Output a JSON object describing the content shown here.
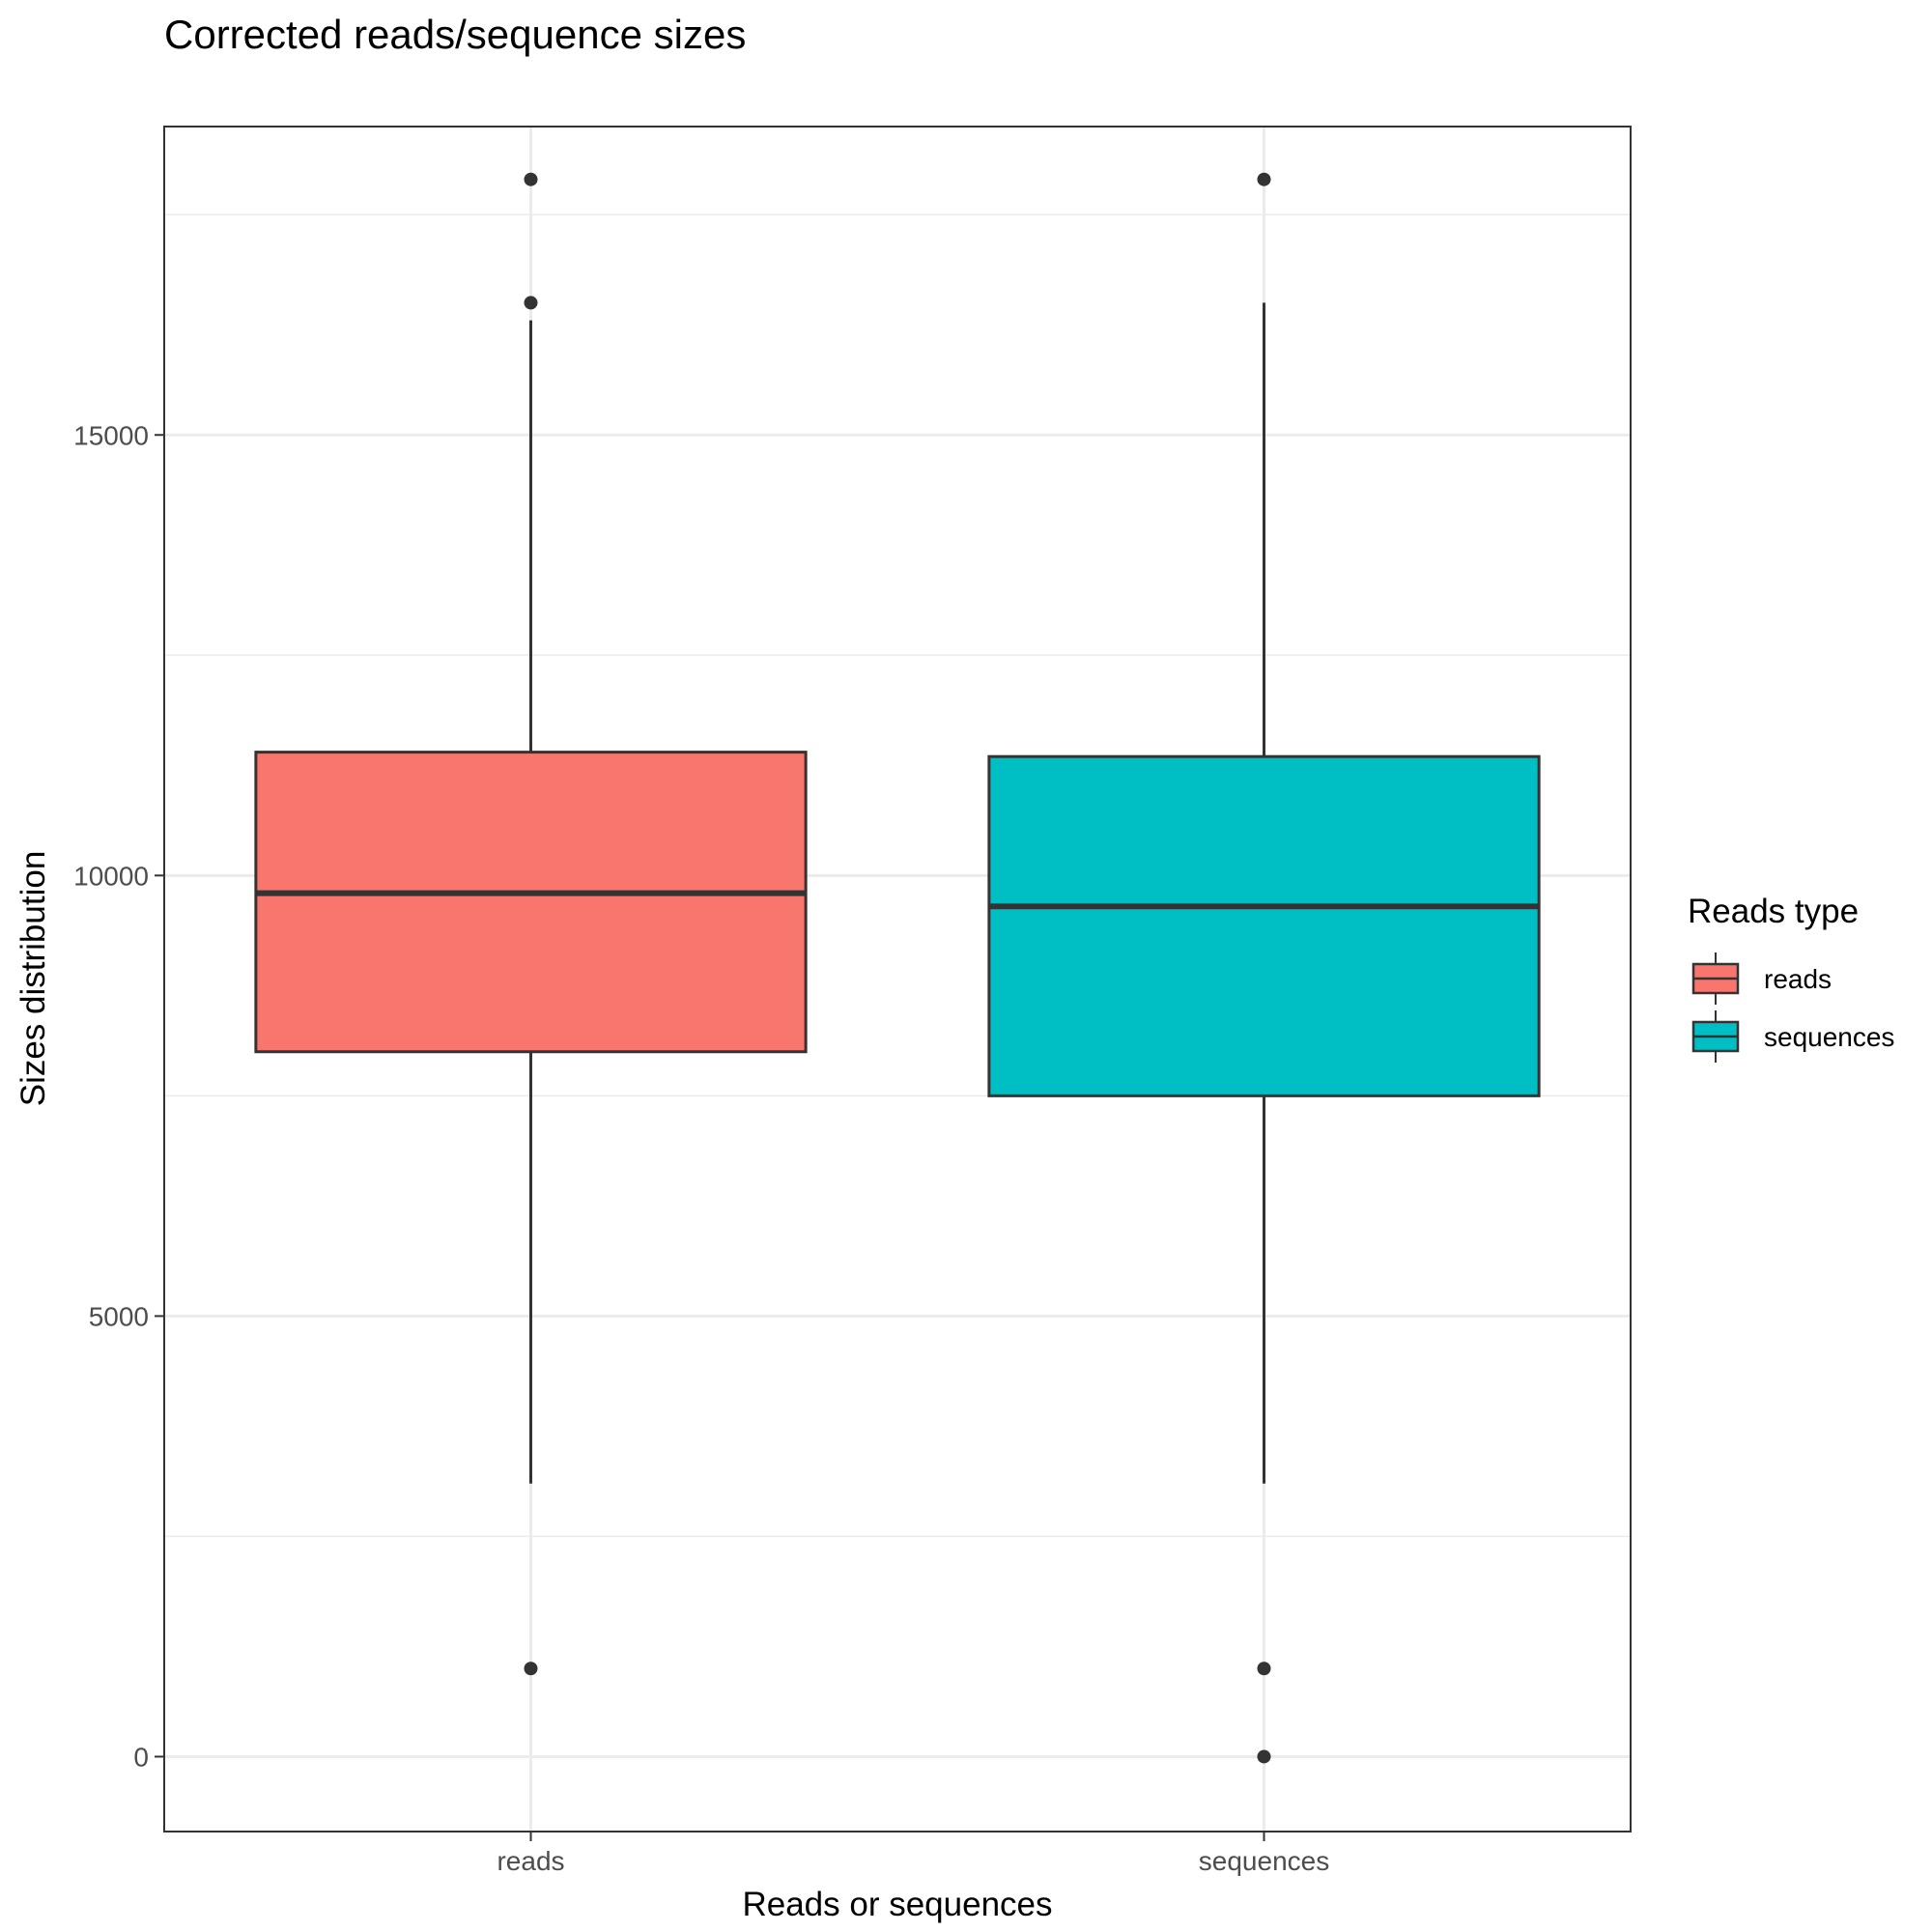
{
  "chart_data": {
    "type": "boxplot",
    "title": "Corrected reads/sequence sizes",
    "xlabel": "Reads or sequences",
    "ylabel": "Sizes distribution",
    "categories": [
      "reads",
      "sequences"
    ],
    "ylim": [
      -850,
      18500
    ],
    "yticks": [
      0,
      5000,
      10000,
      15000
    ],
    "ytick_labels": [
      "0",
      "5000",
      "10000",
      "15000"
    ],
    "grid": true,
    "legend": {
      "title": "Reads type",
      "position": "right",
      "items": [
        {
          "label": "reads",
          "color": "#F8766D"
        },
        {
          "label": "sequences",
          "color": "#00BFC4"
        }
      ]
    },
    "series": [
      {
        "name": "reads",
        "color": "#F8766D",
        "whisker_low": 3100,
        "q1": 8000,
        "median": 9800,
        "q3": 11400,
        "whisker_high": 16300,
        "outliers": [
          17900,
          16500,
          1000
        ]
      },
      {
        "name": "sequences",
        "color": "#00BFC4",
        "whisker_low": 3100,
        "q1": 7500,
        "median": 9650,
        "q3": 11350,
        "whisker_high": 16500,
        "outliers": [
          17900,
          1000,
          0
        ]
      }
    ]
  }
}
